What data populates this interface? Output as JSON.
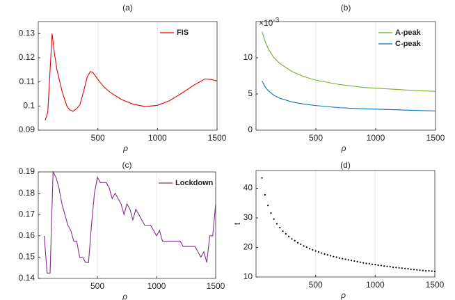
{
  "chart_data": [
    {
      "type": "line",
      "title": "(a)",
      "xlabel": "ρ",
      "xlim": [
        0,
        1500
      ],
      "xticks": [
        500,
        1000,
        1500
      ],
      "ylim": [
        0.09,
        0.135
      ],
      "yticks": [
        0.09,
        0.1,
        0.11,
        0.12,
        0.13
      ],
      "xgrid": true,
      "legend": "northeast",
      "x": [
        58,
        80,
        116,
        135,
        157,
        200,
        240,
        262,
        291,
        320,
        349,
        380,
        410,
        437,
        460,
        500,
        553,
        600,
        698,
        800,
        900,
        1000,
        1100,
        1194,
        1310,
        1397,
        1450,
        1500
      ],
      "series": [
        {
          "name": "FIS",
          "color": "#e00000",
          "values": [
            0.094,
            0.0975,
            0.13,
            0.122,
            0.115,
            0.106,
            0.1,
            0.0985,
            0.0978,
            0.0988,
            0.1005,
            0.106,
            0.112,
            0.1143,
            0.1138,
            0.111,
            0.1078,
            0.1058,
            0.1027,
            0.1007,
            0.0998,
            0.1003,
            0.1022,
            0.105,
            0.1088,
            0.1112,
            0.111,
            0.1104
          ]
        }
      ]
    },
    {
      "type": "line",
      "title": "(b)",
      "xlabel": "ρ",
      "xlim": [
        0,
        1500
      ],
      "xticks": [
        500,
        1000,
        1500
      ],
      "ylim": [
        0,
        15
      ],
      "yticks": [
        0,
        5,
        10
      ],
      "y_exponent_label": {
        "base": "×10",
        "exponent": "-3"
      },
      "xgrid": true,
      "legend": "northeast",
      "x": [
        50,
        75,
        100,
        150,
        200,
        300,
        400,
        500,
        700,
        900,
        1100,
        1300,
        1500
      ],
      "series": [
        {
          "name": "A-peak",
          "color": "#77ac30",
          "values": [
            13.6,
            12.3,
            11.3,
            10.0,
            9.2,
            8.1,
            7.4,
            6.9,
            6.3,
            5.9,
            5.7,
            5.5,
            5.35
          ]
        },
        {
          "name": "C-peak",
          "color": "#0072bd",
          "values": [
            6.8,
            6.0,
            5.5,
            4.8,
            4.4,
            3.9,
            3.6,
            3.4,
            3.1,
            2.95,
            2.85,
            2.75,
            2.65
          ]
        }
      ]
    },
    {
      "type": "line",
      "title": "(c)",
      "xlabel": "ρ",
      "xlim": [
        0,
        1500
      ],
      "xticks": [
        500,
        1000,
        1500
      ],
      "ylim": [
        0.14,
        0.19
      ],
      "yticks": [
        0.14,
        0.15,
        0.16,
        0.17,
        0.18,
        0.19
      ],
      "xgrid": true,
      "legend": "northeast",
      "x": [
        50,
        75,
        100,
        125,
        150,
        175,
        200,
        225,
        250,
        275,
        300,
        325,
        350,
        375,
        400,
        425,
        450,
        475,
        500,
        525,
        550,
        575,
        600,
        625,
        650,
        675,
        700,
        725,
        750,
        775,
        800,
        825,
        850,
        875,
        900,
        925,
        950,
        975,
        1000,
        1025,
        1050,
        1075,
        1100,
        1125,
        1150,
        1175,
        1200,
        1225,
        1250,
        1275,
        1300,
        1325,
        1350,
        1375,
        1400,
        1425,
        1450,
        1475,
        1500
      ],
      "series": [
        {
          "name": "Lockdown",
          "color": "#7e2f8e",
          "values": [
            0.16,
            0.1425,
            0.1425,
            0.19,
            0.1875,
            0.1825,
            0.175,
            0.17,
            0.165,
            0.1625,
            0.1575,
            0.1575,
            0.15,
            0.15,
            0.1475,
            0.1475,
            0.165,
            0.18,
            0.1875,
            0.185,
            0.185,
            0.185,
            0.1825,
            0.1775,
            0.18,
            0.1775,
            0.175,
            0.17,
            0.175,
            0.1725,
            0.1675,
            0.1725,
            0.17,
            0.1675,
            0.165,
            0.165,
            0.165,
            0.1625,
            0.16,
            0.1625,
            0.1575,
            0.1575,
            0.1575,
            0.1575,
            0.1575,
            0.1575,
            0.1575,
            0.155,
            0.155,
            0.155,
            0.155,
            0.155,
            0.1525,
            0.15,
            0.1525,
            0.1475,
            0.16,
            0.16,
            0.175
          ]
        }
      ]
    },
    {
      "type": "scatter",
      "title": "(d)",
      "xlabel": "ρ",
      "ylabel": "t",
      "xlim": [
        0,
        1500
      ],
      "xticks": [
        500,
        1000,
        1500
      ],
      "ylim": [
        10,
        46
      ],
      "yticks": [
        10,
        20,
        30,
        40
      ],
      "xgrid": true,
      "color": "#000000",
      "x": [
        50,
        75,
        100,
        125,
        150,
        175,
        200,
        225,
        250,
        275,
        300,
        325,
        350,
        375,
        400,
        425,
        450,
        475,
        500,
        525,
        550,
        575,
        600,
        625,
        650,
        675,
        700,
        725,
        750,
        775,
        800,
        825,
        850,
        875,
        900,
        925,
        950,
        975,
        1000,
        1025,
        1050,
        1075,
        1100,
        1125,
        1150,
        1175,
        1200,
        1225,
        1250,
        1275,
        1300,
        1325,
        1350,
        1375,
        1400,
        1425,
        1450,
        1475,
        1500
      ],
      "values": [
        43.5,
        37.8,
        34.2,
        31.6,
        29.6,
        28.0,
        26.7,
        25.5,
        24.6,
        23.7,
        22.9,
        22.3,
        21.6,
        21.1,
        20.5,
        20.1,
        19.6,
        19.2,
        18.8,
        18.5,
        18.1,
        17.8,
        17.5,
        17.2,
        16.9,
        16.7,
        16.4,
        16.2,
        16.0,
        15.8,
        15.6,
        15.4,
        15.2,
        15.0,
        14.8,
        14.6,
        14.5,
        14.3,
        14.2,
        14.0,
        13.9,
        13.7,
        13.6,
        13.5,
        13.3,
        13.2,
        13.1,
        13.0,
        12.9,
        12.8,
        12.6,
        12.5,
        12.4,
        12.3,
        12.2,
        12.1,
        12.1,
        12.0,
        11.9
      ]
    }
  ]
}
